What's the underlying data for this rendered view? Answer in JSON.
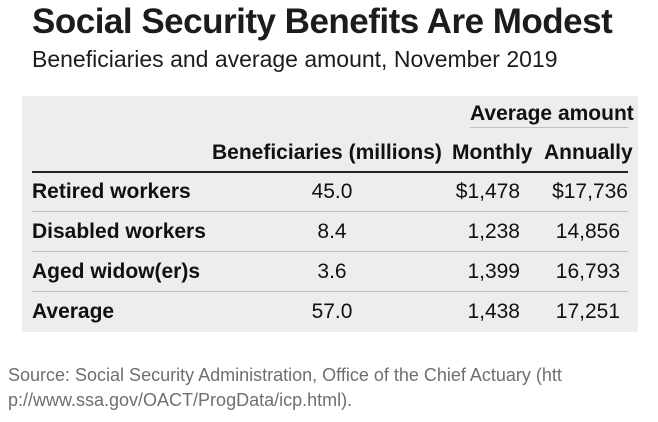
{
  "title": "Social Security Benefits Are Modest",
  "subtitle": "Beneficiaries and average amount, November 2019",
  "table": {
    "group_header": "Average amount",
    "headers": [
      "Beneficiaries (millions)",
      "Monthly",
      "Annually"
    ],
    "rows": [
      {
        "label": "Retired workers",
        "beneficiaries": "45.0",
        "monthly": "$1,478",
        "annually": "$17,736"
      },
      {
        "label": "Disabled workers",
        "beneficiaries": "8.4",
        "monthly": "1,238",
        "annually": "14,856"
      },
      {
        "label": "Aged widow(er)s",
        "beneficiaries": "3.6",
        "monthly": "1,399",
        "annually": "16,793"
      },
      {
        "label": "Average",
        "beneficiaries": "57.0",
        "monthly": "1,438",
        "annually": "17,251"
      }
    ]
  },
  "footer": {
    "prefix": "Source: Social Security Administration, Office of the Chief Actuary (",
    "link_line1": "htt",
    "link_line2": "p://www.ssa.gov/OACT/ProgData/icp.html",
    "suffix": ")."
  }
}
